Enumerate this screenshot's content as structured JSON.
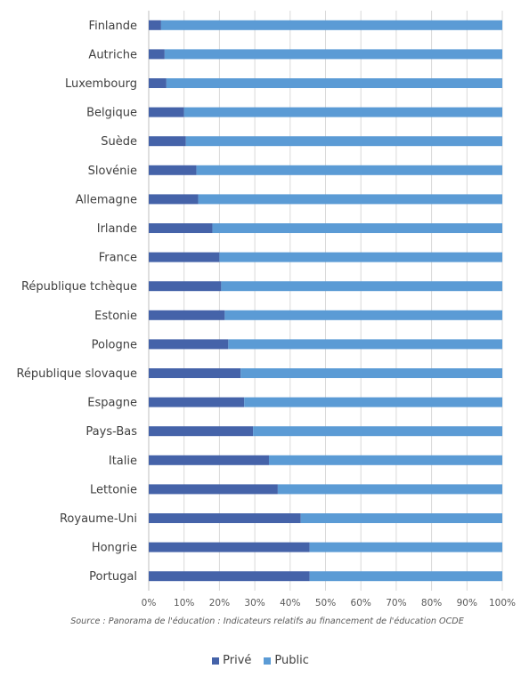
{
  "colors": {
    "prive": "#4563a9",
    "public": "#5b9bd5",
    "grid": "#d9d9d9",
    "axis": "#bfbfbf"
  },
  "source_text": "Source : Panorama de l'éducation : Indicateurs relatifs au financement de l'éducation OCDE",
  "legend": [
    {
      "label": "Privé",
      "color_key": "prive"
    },
    {
      "label": "Public",
      "color_key": "public"
    }
  ],
  "chart_data": {
    "type": "bar",
    "orientation": "horizontal",
    "stacked": "percent",
    "categories": [
      "Finlande",
      "Autriche",
      "Luxembourg",
      "Belgique",
      "Suède",
      "Slovénie",
      "Allemagne",
      "Irlande",
      "France",
      "République tchèque",
      "Estonie",
      "Pologne",
      "République slovaque",
      "Espagne",
      "Pays-Bas",
      "Italie",
      "Lettonie",
      "Royaume-Uni",
      "Hongrie",
      "Portugal"
    ],
    "series": [
      {
        "name": "Privé",
        "values": [
          3.5,
          4.5,
          5,
          10,
          10.5,
          13.5,
          14,
          18,
          20,
          20.5,
          21.5,
          22.5,
          26,
          27,
          29.5,
          34,
          36.5,
          43,
          45.5,
          45.5
        ]
      },
      {
        "name": "Public",
        "values": [
          96.5,
          95.5,
          95,
          90,
          89.5,
          86.5,
          86,
          82,
          80,
          79.5,
          78.5,
          77.5,
          74,
          73,
          70.5,
          66,
          63.5,
          57,
          54.5,
          54.5
        ]
      }
    ],
    "x_ticks": [
      "0%",
      "10%",
      "20%",
      "30%",
      "40%",
      "50%",
      "60%",
      "70%",
      "80%",
      "90%",
      "100%"
    ],
    "xlim": [
      0,
      100
    ],
    "grid": true,
    "legend_position": "bottom"
  }
}
